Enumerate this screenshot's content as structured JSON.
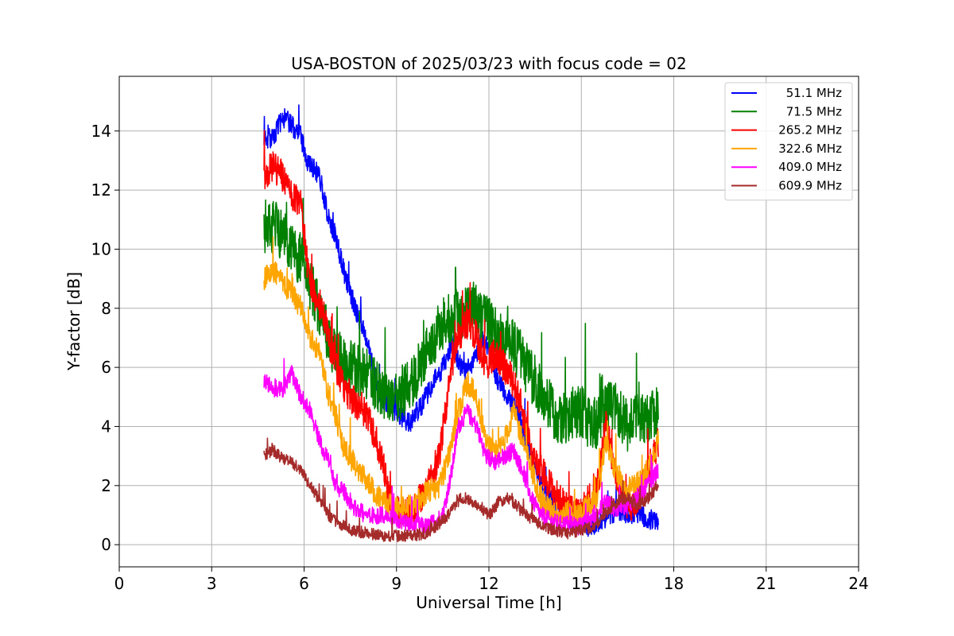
{
  "chart_data": {
    "type": "line",
    "title": "USA-BOSTON of 2025/03/23 with focus code = 02",
    "xlabel": "Universal Time [h]",
    "ylabel": "Y-factor [dB]",
    "xlim": [
      0,
      24
    ],
    "ylim": [
      -0.75,
      15.85
    ],
    "xticks": [
      0,
      3,
      6,
      9,
      12,
      15,
      18,
      21,
      24
    ],
    "yticks": [
      0,
      2,
      4,
      6,
      8,
      10,
      12,
      14
    ],
    "xtick_labels": [
      "0",
      "3",
      "6",
      "9",
      "12",
      "15",
      "18",
      "21",
      "24"
    ],
    "ytick_labels": [
      "0",
      "2",
      "4",
      "6",
      "8",
      "10",
      "12",
      "14"
    ],
    "grid": true,
    "legend_position": "top-right",
    "series": [
      {
        "name": "51.1 MHz",
        "color": "#0000ff",
        "noise": 0.35,
        "x": [
          4.7,
          5.0,
          5.3,
          5.6,
          5.9,
          6.1,
          6.5,
          6.8,
          7.0,
          7.3,
          7.6,
          8.0,
          8.5,
          9.0,
          9.4,
          9.8,
          10.2,
          10.5,
          10.8,
          11.0,
          11.2,
          11.5,
          11.8,
          12.0,
          12.3,
          12.6,
          12.9,
          13.2,
          13.5,
          13.8,
          14.1,
          14.4,
          14.7,
          15.0,
          15.3,
          15.6,
          15.9,
          16.2,
          16.5,
          16.8,
          17.1,
          17.5
        ],
        "y": [
          13.8,
          13.7,
          14.5,
          14.2,
          13.8,
          13.0,
          12.5,
          11.0,
          10.5,
          9.2,
          8.2,
          7.0,
          5.0,
          4.5,
          4.1,
          4.7,
          5.5,
          6.0,
          6.8,
          6.2,
          5.8,
          6.2,
          7.0,
          6.5,
          5.5,
          5.0,
          4.5,
          3.5,
          2.5,
          1.8,
          1.5,
          1.0,
          0.8,
          0.7,
          0.6,
          0.8,
          1.0,
          1.2,
          1.0,
          1.1,
          0.9,
          0.8
        ]
      },
      {
        "name": "71.5 MHz",
        "color": "#008000",
        "noise": 0.9,
        "x": [
          4.7,
          5.0,
          5.3,
          5.6,
          6.0,
          6.3,
          6.6,
          7.0,
          7.5,
          8.0,
          8.5,
          9.0,
          9.5,
          10.0,
          10.5,
          11.0,
          11.5,
          12.0,
          12.3,
          12.6,
          12.9,
          13.2,
          13.5,
          13.8,
          14.1,
          14.4,
          14.7,
          15.0,
          15.3,
          15.6,
          15.9,
          16.2,
          16.5,
          16.8,
          17.1,
          17.5
        ],
        "y": [
          10.5,
          10.8,
          10.5,
          10.0,
          9.5,
          8.5,
          7.5,
          6.5,
          6.0,
          5.8,
          5.2,
          5.0,
          5.5,
          6.5,
          7.5,
          7.8,
          8.0,
          7.5,
          7.0,
          7.2,
          6.5,
          6.0,
          5.5,
          5.0,
          4.5,
          4.2,
          4.5,
          4.5,
          4.0,
          4.2,
          4.8,
          4.5,
          4.0,
          4.5,
          4.2,
          4.5
        ]
      },
      {
        "name": "265.2 MHz",
        "color": "#ff0000",
        "noise": 0.55,
        "x": [
          4.7,
          5.0,
          5.3,
          5.6,
          5.9,
          6.1,
          6.3,
          6.6,
          6.9,
          7.2,
          7.5,
          8.0,
          8.5,
          8.8,
          9.2,
          9.6,
          10.0,
          10.4,
          10.8,
          11.0,
          11.3,
          11.6,
          11.9,
          12.2,
          12.5,
          12.8,
          13.1,
          13.4,
          13.7,
          14.0,
          14.3,
          14.6,
          14.9,
          15.2,
          15.5,
          15.8,
          16.1,
          16.4,
          16.7,
          17.0,
          17.5
        ],
        "y": [
          12.5,
          12.8,
          12.5,
          11.8,
          11.5,
          9.5,
          8.5,
          8.0,
          6.5,
          5.5,
          5.0,
          4.5,
          3.0,
          1.5,
          1.0,
          1.2,
          2.0,
          3.0,
          6.0,
          7.0,
          7.5,
          7.0,
          6.0,
          6.5,
          6.0,
          5.5,
          4.5,
          3.0,
          2.5,
          2.0,
          1.5,
          1.2,
          1.0,
          1.5,
          1.8,
          4.0,
          2.5,
          1.5,
          1.2,
          2.0,
          3.5
        ]
      },
      {
        "name": "322.6 MHz",
        "color": "#ffa500",
        "noise": 0.4,
        "x": [
          4.7,
          5.0,
          5.3,
          5.6,
          5.9,
          6.2,
          6.5,
          6.8,
          7.0,
          7.3,
          7.6,
          8.0,
          8.5,
          9.0,
          9.5,
          10.0,
          10.4,
          10.7,
          11.0,
          11.3,
          11.6,
          11.9,
          12.2,
          12.5,
          12.8,
          13.1,
          13.4,
          13.7,
          14.0,
          14.3,
          14.6,
          14.9,
          15.2,
          15.5,
          15.8,
          16.1,
          16.4,
          16.7,
          17.0,
          17.5
        ],
        "y": [
          9.0,
          9.3,
          8.8,
          8.5,
          8.0,
          7.0,
          6.5,
          5.0,
          4.5,
          3.2,
          2.8,
          2.2,
          1.5,
          1.2,
          1.3,
          1.8,
          2.0,
          3.0,
          4.5,
          5.5,
          5.0,
          3.5,
          3.0,
          3.5,
          4.5,
          3.5,
          2.5,
          1.5,
          1.2,
          1.0,
          1.1,
          1.0,
          1.3,
          1.5,
          3.5,
          2.5,
          1.8,
          2.0,
          2.2,
          3.5
        ]
      },
      {
        "name": "409.0 MHz",
        "color": "#ff00ff",
        "noise": 0.3,
        "x": [
          4.7,
          5.0,
          5.3,
          5.6,
          5.9,
          6.2,
          6.5,
          6.8,
          7.0,
          7.3,
          7.6,
          8.0,
          8.5,
          9.0,
          9.5,
          10.0,
          10.5,
          10.8,
          11.0,
          11.3,
          11.6,
          11.9,
          12.2,
          12.5,
          12.8,
          13.1,
          13.4,
          13.7,
          14.0,
          14.3,
          14.6,
          14.9,
          15.2,
          15.5,
          15.8,
          16.1,
          16.4,
          16.7,
          17.0,
          17.5
        ],
        "y": [
          5.5,
          5.3,
          5.2,
          5.8,
          5.0,
          4.5,
          3.5,
          2.8,
          2.0,
          1.8,
          1.3,
          1.0,
          1.0,
          0.8,
          0.7,
          0.6,
          1.0,
          2.5,
          4.0,
          4.5,
          4.0,
          3.0,
          2.8,
          3.0,
          3.2,
          2.5,
          1.5,
          1.0,
          0.8,
          0.7,
          0.7,
          0.6,
          0.8,
          1.0,
          1.5,
          1.2,
          1.3,
          1.5,
          1.8,
          2.5
        ]
      },
      {
        "name": "609.9 MHz",
        "color": "#a52a2a",
        "noise": 0.2,
        "x": [
          4.7,
          5.0,
          5.3,
          5.6,
          5.9,
          6.2,
          6.5,
          6.8,
          7.0,
          7.5,
          8.0,
          8.5,
          9.0,
          9.5,
          10.0,
          10.5,
          10.8,
          11.1,
          11.4,
          11.7,
          12.0,
          12.3,
          12.6,
          12.9,
          13.2,
          13.5,
          13.8,
          14.1,
          14.4,
          14.7,
          15.0,
          15.3,
          15.6,
          15.9,
          16.2,
          16.5,
          16.8,
          17.1,
          17.5
        ],
        "y": [
          3.0,
          3.2,
          2.9,
          2.8,
          2.5,
          2.0,
          1.5,
          1.0,
          0.8,
          0.5,
          0.4,
          0.3,
          0.3,
          0.3,
          0.4,
          0.8,
          1.2,
          1.6,
          1.5,
          1.2,
          1.0,
          1.4,
          1.6,
          1.3,
          1.0,
          0.8,
          0.6,
          0.5,
          0.4,
          0.4,
          0.5,
          0.6,
          0.8,
          1.2,
          1.5,
          1.6,
          1.3,
          1.5,
          2.0
        ]
      }
    ]
  }
}
